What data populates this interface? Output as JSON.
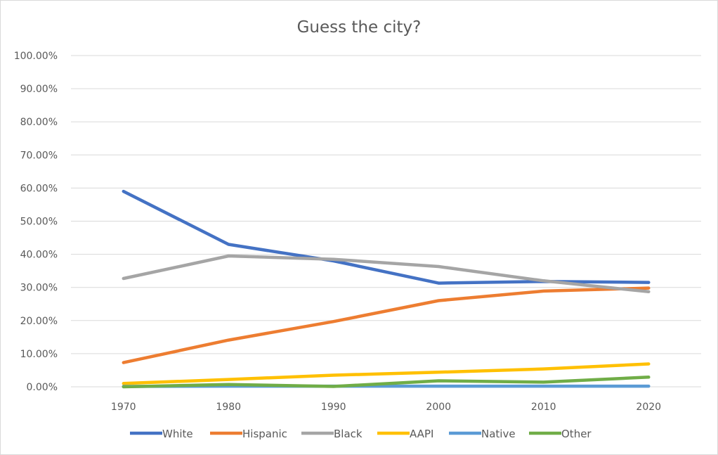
{
  "chart_data": {
    "type": "line",
    "title": "Guess the city?",
    "xlabel": "",
    "ylabel": "",
    "categories": [
      "1970",
      "1980",
      "1990",
      "2000",
      "2010",
      "2020"
    ],
    "y_ticks": [
      "0.00%",
      "10.00%",
      "20.00%",
      "30.00%",
      "40.00%",
      "50.00%",
      "60.00%",
      "70.00%",
      "80.00%",
      "90.00%",
      "100.00%"
    ],
    "ylim": [
      0,
      100
    ],
    "grid": true,
    "legend_position": "bottom",
    "series": [
      {
        "name": "White",
        "color": "#4472c4",
        "values": [
          59.0,
          43.0,
          38.0,
          31.3,
          31.8,
          31.5
        ]
      },
      {
        "name": "Hispanic",
        "color": "#ed7d31",
        "values": [
          7.3,
          14.1,
          19.7,
          26.0,
          28.9,
          29.8
        ]
      },
      {
        "name": "Black",
        "color": "#a5a5a5",
        "values": [
          32.7,
          39.5,
          38.5,
          36.3,
          32.0,
          28.7
        ]
      },
      {
        "name": "AAPI",
        "color": "#ffc000",
        "values": [
          1.0,
          2.2,
          3.5,
          4.4,
          5.4,
          6.9
        ]
      },
      {
        "name": "Native",
        "color": "#5b9bd5",
        "values": [
          0.1,
          0.2,
          0.2,
          0.2,
          0.2,
          0.2
        ]
      },
      {
        "name": "Other",
        "color": "#70ad47",
        "values": [
          0.0,
          0.7,
          0.1,
          1.8,
          1.4,
          2.9
        ]
      }
    ]
  }
}
